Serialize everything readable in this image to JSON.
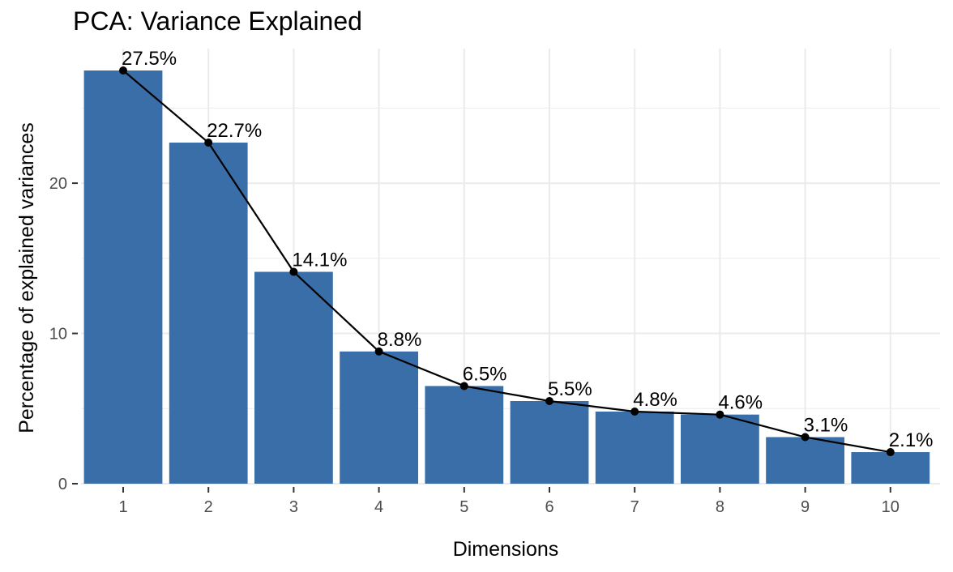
{
  "chart_data": {
    "type": "bar",
    "title": "PCA: Variance Explained",
    "xlabel": "Dimensions",
    "ylabel": "Percentage of explained variances",
    "categories": [
      "1",
      "2",
      "3",
      "4",
      "5",
      "6",
      "7",
      "8",
      "9",
      "10"
    ],
    "values": [
      27.5,
      22.7,
      14.1,
      8.8,
      6.5,
      5.5,
      4.8,
      4.6,
      3.1,
      2.1
    ],
    "data_labels": [
      "27.5%",
      "22.7%",
      "14.1%",
      "8.8%",
      "6.5%",
      "5.5%",
      "4.8%",
      "4.6%",
      "3.1%",
      "2.1%"
    ],
    "ylim": [
      0,
      27.5
    ],
    "yticks": [
      0,
      10,
      20
    ],
    "ytick_labels": [
      "0",
      "10",
      "20"
    ],
    "grid": true,
    "overlay_line": true,
    "colors": {
      "bar": "#3A6EA8",
      "line": "#000000",
      "grid": "#EBEBEB"
    }
  }
}
